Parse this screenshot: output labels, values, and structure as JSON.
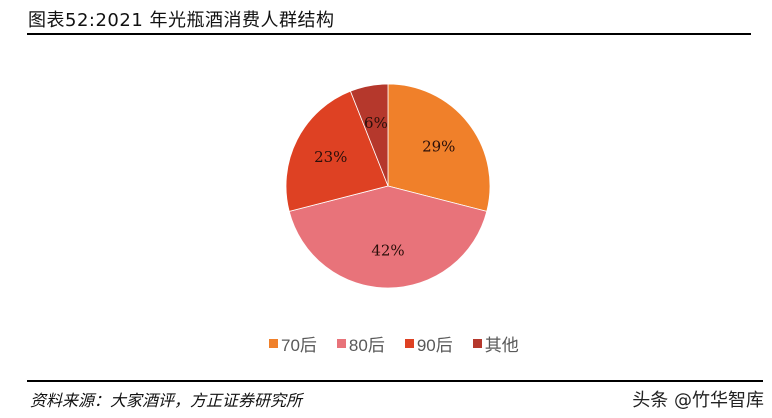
{
  "header": {
    "title": "图表52:2021 年光瓶酒消费人群结构"
  },
  "chart_data": {
    "type": "pie",
    "title": "图表52:2021 年光瓶酒消费人群结构",
    "categories": [
      "70后",
      "80后",
      "90后",
      "其他"
    ],
    "values": [
      29,
      42,
      23,
      6
    ],
    "labels": [
      "29%",
      "42%",
      "23%",
      "6%"
    ],
    "colors": [
      "#F0802A",
      "#E8737A",
      "#DE4123",
      "#B5382C"
    ],
    "start_angle": "12 o'clock",
    "direction": "clockwise",
    "legend_position": "bottom"
  },
  "legend": {
    "items": [
      {
        "label": "70后",
        "color": "#F0802A"
      },
      {
        "label": "80后",
        "color": "#E8737A"
      },
      {
        "label": "90后",
        "color": "#DE4123"
      },
      {
        "label": "其他",
        "color": "#B5382C"
      }
    ]
  },
  "footer": {
    "source": "资料来源：大家酒评，方正证券研究所",
    "watermark": "头条 @竹华智库"
  }
}
